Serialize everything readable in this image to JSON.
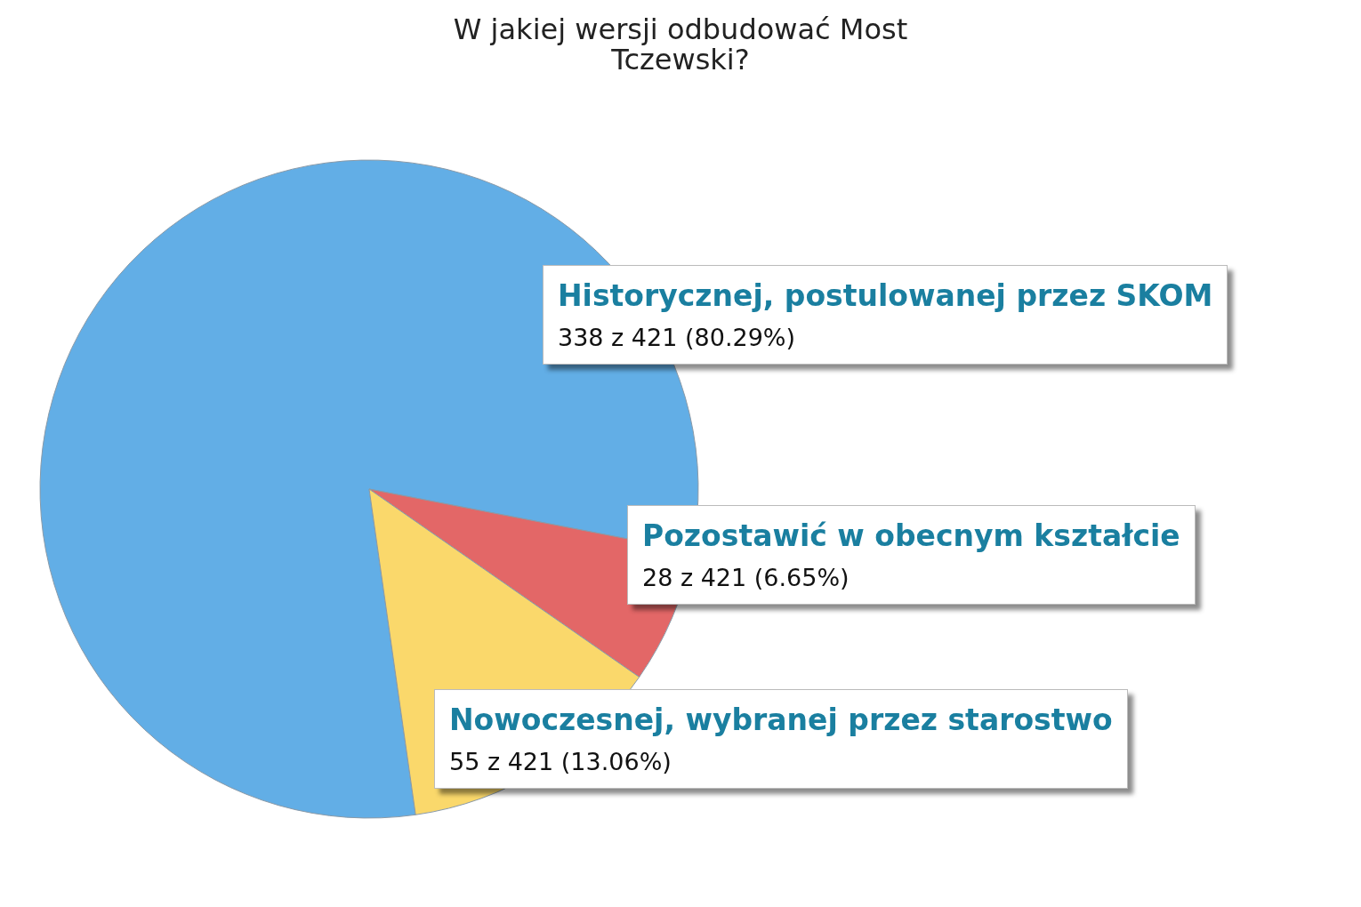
{
  "chart_data": {
    "type": "pie",
    "title": "W jakiej wersji odbudować Most Tczewski?",
    "categories": [
      "Historycznej, postulowanej przez SKOM",
      "Pozostawić w obecnym kształcie",
      "Nowoczesnej, wybranej przez starostwo"
    ],
    "values": [
      338,
      28,
      55
    ],
    "colors": [
      "#62aee6",
      "#e36767",
      "#fad86b"
    ],
    "value_labels": [
      "338 z 421 (80.29%)",
      "28 z 421 (6.65%)",
      "55 z 421 (13.06%)"
    ]
  }
}
